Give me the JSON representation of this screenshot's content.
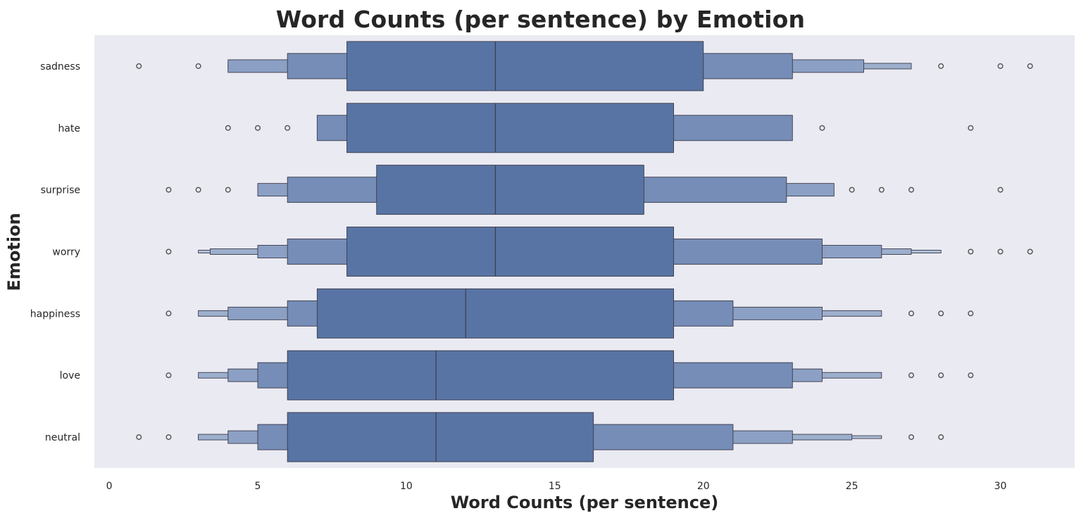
{
  "chart_data": {
    "type": "boxen",
    "title": "Word Counts (per sentence) by Emotion",
    "xlabel": "Word Counts (per sentence)",
    "ylabel": "Emotion",
    "xlim": [
      -0.5,
      32.5
    ],
    "xticks": [
      0,
      5,
      10,
      15,
      20,
      25,
      30
    ],
    "grid": false,
    "orientation": "horizontal",
    "colors": {
      "background": "#eaeaf2",
      "box": "#5874a4",
      "edge": "#3b3b4a",
      "outlier": "#5a5a5a"
    },
    "categories": [
      "sadness",
      "hate",
      "surprise",
      "worry",
      "happiness",
      "love",
      "neutral"
    ],
    "series": [
      {
        "category": "sadness",
        "median": 13,
        "boxes": [
          [
            8,
            20
          ],
          [
            6,
            23
          ],
          [
            4,
            25.4
          ],
          [
            4,
            27
          ]
        ],
        "outliers": [
          1,
          3,
          28,
          30,
          31
        ]
      },
      {
        "category": "hate",
        "median": 13,
        "boxes": [
          [
            8,
            19
          ],
          [
            7,
            23
          ]
        ],
        "outliers": [
          4,
          5,
          6,
          24,
          29
        ]
      },
      {
        "category": "surprise",
        "median": 13,
        "boxes": [
          [
            9,
            18
          ],
          [
            6,
            22.8
          ],
          [
            5,
            24.4
          ]
        ],
        "outliers": [
          2,
          3,
          4,
          25,
          26,
          27,
          30
        ]
      },
      {
        "category": "worry",
        "median": 13,
        "boxes": [
          [
            8,
            19
          ],
          [
            6,
            24
          ],
          [
            5,
            26
          ],
          [
            3.4,
            27
          ],
          [
            3,
            28
          ]
        ],
        "outliers": [
          2,
          29,
          30,
          31
        ]
      },
      {
        "category": "happiness",
        "median": 12,
        "boxes": [
          [
            7,
            19
          ],
          [
            6,
            21
          ],
          [
            4,
            24
          ],
          [
            3,
            26
          ]
        ],
        "outliers": [
          2,
          27,
          28,
          29
        ]
      },
      {
        "category": "love",
        "median": 11,
        "boxes": [
          [
            6,
            19
          ],
          [
            5,
            23
          ],
          [
            4,
            24
          ],
          [
            3,
            26
          ]
        ],
        "outliers": [
          2,
          27,
          28,
          29
        ]
      },
      {
        "category": "neutral",
        "median": 11,
        "boxes": [
          [
            6,
            16.3
          ],
          [
            5,
            21
          ],
          [
            4,
            23
          ],
          [
            3,
            25
          ],
          [
            3,
            26
          ]
        ],
        "outliers": [
          1,
          2,
          27,
          28
        ]
      }
    ]
  }
}
